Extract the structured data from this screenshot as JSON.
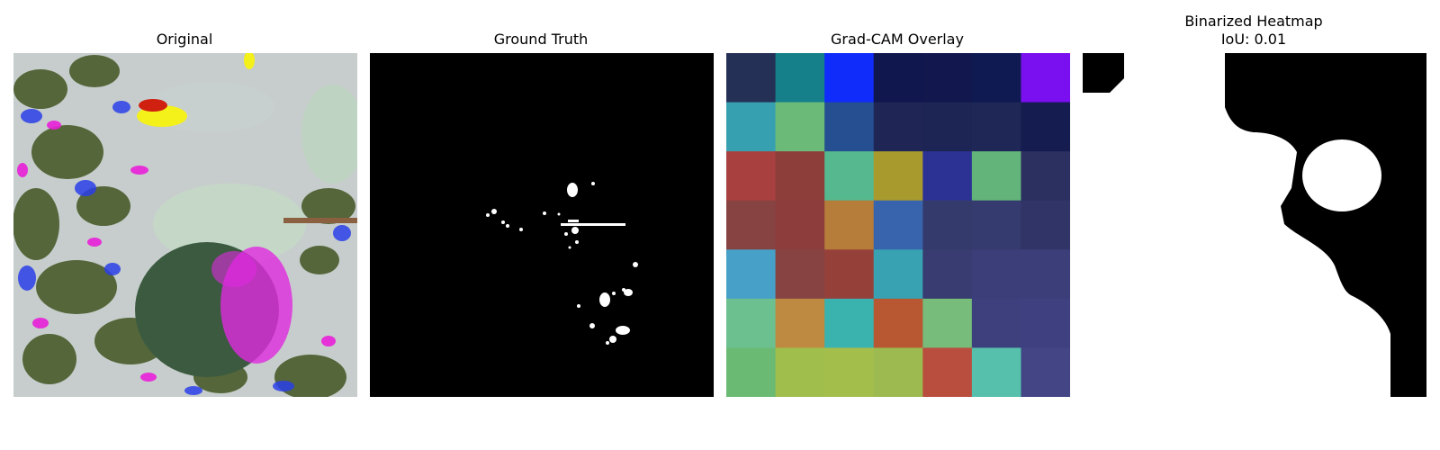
{
  "panels": [
    {
      "title": "Original"
    },
    {
      "title": "Ground Truth"
    },
    {
      "title": "Grad-CAM Overlay"
    },
    {
      "title_line1": "Binarized Heatmap",
      "title_line2": "IoU: 0.01"
    }
  ],
  "gradcam": {
    "rows": 7,
    "cols": 7,
    "colors": [
      [
        "#243056",
        "#16808a",
        "#0f2cfa",
        "#10164e",
        "#12184e",
        "#0f1a52",
        "#7a0ff0"
      ],
      [
        "#36a0b0",
        "#6cba78",
        "#254f90",
        "#1f2656",
        "#1d2555",
        "#1f2757",
        "#141c50"
      ],
      [
        "#a94040",
        "#8d3e3b",
        "#55b88e",
        "#a89a2c",
        "#2c3294",
        "#63b47a",
        "#2c3060"
      ],
      [
        "#874342",
        "#8c3d3c",
        "#b67c3a",
        "#3764ad",
        "#353a6c",
        "#353b6e",
        "#303466"
      ],
      [
        "#46a0c8",
        "#874342",
        "#96403a",
        "#38a2b2",
        "#383c70",
        "#3c3e7a",
        "#3c3e7a"
      ],
      [
        "#6cc090",
        "#be8a42",
        "#3ab2ae",
        "#b85832",
        "#77bc7a",
        "#3e407e",
        "#3e4080"
      ],
      [
        "#6aba74",
        "#a0be4c",
        "#a4be4c",
        "#9cba50",
        "#b94d3e",
        "#56c0ac",
        "#434584"
      ]
    ]
  }
}
